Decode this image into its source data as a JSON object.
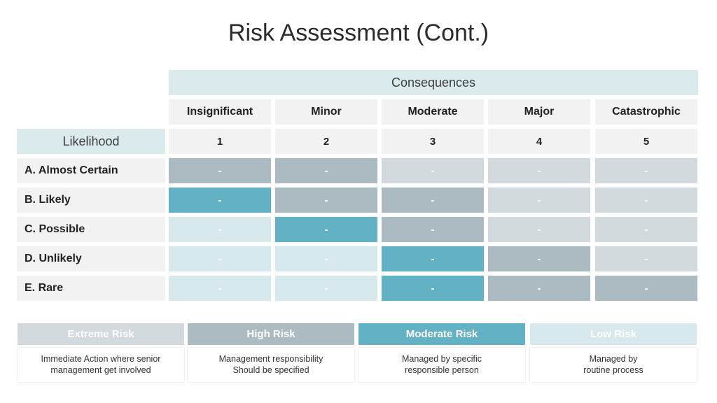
{
  "title": "Risk Assessment (Cont.)",
  "consequences_label": "Consequences",
  "likelihood_label": "Likelihood",
  "colors": {
    "extreme": "#d2dadd",
    "high": "#acbbc2",
    "moderate": "#62b1c4",
    "low": "#d7e9ec",
    "header_bg": "#daeaed",
    "cell_bg": "#f2f2f2"
  },
  "columns": [
    {
      "label": "Insignificant",
      "num": "1"
    },
    {
      "label": "Minor",
      "num": "2"
    },
    {
      "label": "Moderate",
      "num": "3"
    },
    {
      "label": "Major",
      "num": "4"
    },
    {
      "label": "Catastrophic",
      "num": "5"
    }
  ],
  "rows": [
    {
      "label": "A. Almost Certain",
      "cells": [
        {
          "text": "-",
          "level": "high"
        },
        {
          "text": "-",
          "level": "high"
        },
        {
          "text": "-",
          "level": "extreme"
        },
        {
          "text": "-",
          "level": "extreme"
        },
        {
          "text": "-",
          "level": "extreme"
        }
      ]
    },
    {
      "label": "B. Likely",
      "cells": [
        {
          "text": "-",
          "level": "moderate"
        },
        {
          "text": "-",
          "level": "high"
        },
        {
          "text": "-",
          "level": "high"
        },
        {
          "text": "-",
          "level": "extreme"
        },
        {
          "text": "-",
          "level": "extreme"
        }
      ]
    },
    {
      "label": "C. Possible",
      "cells": [
        {
          "text": "-",
          "level": "low"
        },
        {
          "text": "-",
          "level": "moderate"
        },
        {
          "text": "-",
          "level": "high"
        },
        {
          "text": "-",
          "level": "extreme"
        },
        {
          "text": "-",
          "level": "extreme"
        }
      ]
    },
    {
      "label": "D. Unlikely",
      "cells": [
        {
          "text": "-",
          "level": "low"
        },
        {
          "text": "-",
          "level": "low"
        },
        {
          "text": "-",
          "level": "moderate"
        },
        {
          "text": "-",
          "level": "high"
        },
        {
          "text": "-",
          "level": "extreme"
        }
      ]
    },
    {
      "label": "E. Rare",
      "cells": [
        {
          "text": "-",
          "level": "low"
        },
        {
          "text": "-",
          "level": "low"
        },
        {
          "text": "-",
          "level": "moderate"
        },
        {
          "text": "-",
          "level": "high"
        },
        {
          "text": "-",
          "level": "high"
        }
      ]
    }
  ],
  "legend": [
    {
      "label": "Extreme Risk",
      "level": "extreme",
      "desc_line1": "Immediate Action where senior",
      "desc_line2": "management get involved"
    },
    {
      "label": "High Risk",
      "level": "high",
      "desc_line1": "Management responsibility",
      "desc_line2": "Should be specified"
    },
    {
      "label": "Moderate Risk",
      "level": "moderate",
      "desc_line1": "Managed by specific",
      "desc_line2": "responsible person"
    },
    {
      "label": "Low Risk",
      "level": "low",
      "desc_line1": "Managed by",
      "desc_line2": "routine process"
    }
  ]
}
